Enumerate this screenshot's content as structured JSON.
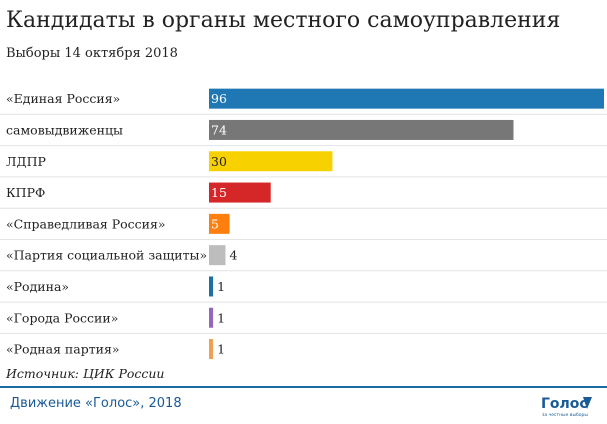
{
  "title": "Кандидаты в органы местного самоуправления",
  "subtitle": "Выборы 14 октября 2018",
  "source": "Источник: ЦИК России",
  "footer": "Движение «Голос», 2018",
  "logo": {
    "text": "Голос",
    "tagline": "за честные выборы",
    "icon": "golos-logo"
  },
  "chart_data": {
    "type": "bar",
    "orientation": "horizontal",
    "title": "Кандидаты в органы местного самоуправления",
    "subtitle": "Выборы 14 октября 2018",
    "categories": [
      "«Единая Россия»",
      "самовыдвиженцы",
      "ЛДПР",
      "КПРФ",
      "«Справедливая Россия»",
      "«Партия социальной защиты»",
      "«Родина»",
      "«Города России»",
      "«Родная партия»"
    ],
    "values": [
      96,
      74,
      30,
      15,
      5,
      4,
      1,
      1,
      1
    ],
    "colors": [
      "#1f77b4",
      "#777777",
      "#f8d200",
      "#d62728",
      "#ff7f0e",
      "#bdbdbd",
      "#1f6f9f",
      "#9467bd",
      "#f0a050"
    ],
    "value_label_colors": [
      "#ffffff",
      "#ffffff",
      "#222222",
      "#ffffff",
      "#ffffff",
      "#222222",
      "#222222",
      "#222222",
      "#222222"
    ],
    "xlim": [
      0,
      96
    ],
    "grid": true,
    "legend": "none"
  }
}
